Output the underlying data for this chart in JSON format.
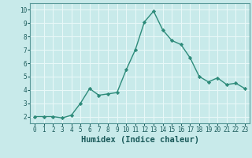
{
  "x": [
    0,
    1,
    2,
    3,
    4,
    5,
    6,
    7,
    8,
    9,
    10,
    11,
    12,
    13,
    14,
    15,
    16,
    17,
    18,
    19,
    20,
    21,
    22,
    23
  ],
  "y": [
    2.0,
    2.0,
    2.0,
    1.9,
    2.1,
    3.0,
    4.1,
    3.6,
    3.7,
    3.8,
    5.5,
    7.0,
    9.1,
    9.9,
    8.5,
    7.7,
    7.4,
    6.4,
    5.0,
    4.6,
    4.9,
    4.4,
    4.5,
    4.1
  ],
  "line_color": "#2e8b7a",
  "marker": "D",
  "markersize": 2.2,
  "linewidth": 1.0,
  "bg_color": "#c8eaea",
  "grid_color": "#e8f8f8",
  "xlabel": "Humidex (Indice chaleur)",
  "xlabel_fontsize": 7.5,
  "xlabel_color": "#1a5a5a",
  "tick_color": "#1a5a5a",
  "tick_fontsize": 5.5,
  "ylim": [
    1.5,
    10.5
  ],
  "xlim": [
    -0.5,
    23.5
  ],
  "yticks": [
    2,
    3,
    4,
    5,
    6,
    7,
    8,
    9,
    10
  ],
  "xticks": [
    0,
    1,
    2,
    3,
    4,
    5,
    6,
    7,
    8,
    9,
    10,
    11,
    12,
    13,
    14,
    15,
    16,
    17,
    18,
    19,
    20,
    21,
    22,
    23
  ]
}
